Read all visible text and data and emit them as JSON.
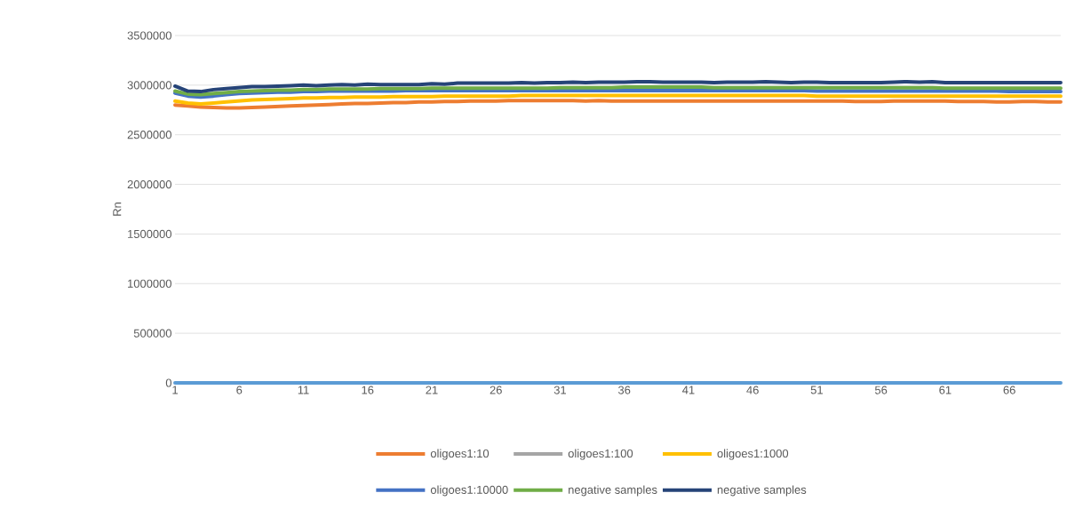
{
  "chart_data": {
    "type": "line",
    "ylabel": "Rn",
    "categories": [
      "1",
      null,
      null,
      null,
      null,
      "6",
      null,
      null,
      null,
      null,
      "11",
      null,
      null,
      null,
      null,
      "16",
      null,
      null,
      null,
      null,
      "21",
      null,
      null,
      null,
      null,
      "26",
      null,
      null,
      null,
      null,
      "31",
      null,
      null,
      null,
      null,
      "36",
      null,
      null,
      null,
      null,
      "41",
      null,
      null,
      null,
      null,
      "46",
      null,
      null,
      null,
      null,
      "51",
      null,
      null,
      null,
      null,
      "56",
      null,
      null,
      null,
      null,
      "61",
      null,
      null,
      null,
      null,
      "66",
      null,
      null,
      null,
      null
    ],
    "ylim": [
      0,
      3500000
    ],
    "yticks": [
      0,
      500000,
      1000000,
      1500000,
      2000000,
      2500000,
      3000000,
      3500000
    ],
    "grid": "y",
    "legend": "bottom",
    "marker": "none",
    "line_style": "solid",
    "series": [
      {
        "color": "#5b9bd5",
        "values": [
          0,
          0,
          0,
          0,
          0,
          0,
          0,
          0,
          0,
          0,
          0,
          0,
          0,
          0,
          0,
          0,
          0,
          0,
          0,
          0,
          0,
          0,
          0,
          0,
          0,
          0,
          0,
          0,
          0,
          0,
          0,
          0,
          0,
          0,
          0,
          0,
          0,
          0,
          0,
          0,
          0,
          0,
          0,
          0,
          0,
          0,
          0,
          0,
          0,
          0,
          0,
          0,
          0,
          0,
          0,
          0,
          0,
          0,
          0,
          0,
          0,
          0,
          0,
          0,
          0,
          0,
          0,
          0,
          0,
          0
        ]
      },
      {
        "name": "oligoes1:10",
        "color": "#ed7d31",
        "values": [
          2800000,
          2790000,
          2780000,
          2775000,
          2770000,
          2770000,
          2775000,
          2780000,
          2785000,
          2790000,
          2795000,
          2800000,
          2805000,
          2810000,
          2815000,
          2815000,
          2820000,
          2825000,
          2825000,
          2830000,
          2830000,
          2835000,
          2835000,
          2840000,
          2840000,
          2840000,
          2845000,
          2845000,
          2845000,
          2845000,
          2845000,
          2845000,
          2840000,
          2845000,
          2840000,
          2840000,
          2840000,
          2840000,
          2840000,
          2840000,
          2840000,
          2840000,
          2840000,
          2840000,
          2840000,
          2840000,
          2840000,
          2840000,
          2840000,
          2840000,
          2840000,
          2840000,
          2840000,
          2835000,
          2835000,
          2835000,
          2840000,
          2840000,
          2840000,
          2840000,
          2840000,
          2835000,
          2835000,
          2835000,
          2830000,
          2830000,
          2835000,
          2835000,
          2830000,
          2830000
        ]
      },
      {
        "name": "oligoes1:100",
        "color": "#a5a5a5",
        "values": [
          null,
          null,
          null,
          null,
          null,
          null,
          null,
          null,
          null,
          null,
          null,
          null,
          null,
          null,
          null,
          null,
          null,
          null,
          null,
          null,
          null,
          null,
          null,
          null,
          null,
          null,
          null,
          null,
          null,
          null,
          null,
          null,
          null,
          null,
          null,
          null,
          null,
          null,
          null,
          null,
          null,
          null,
          null,
          null,
          null,
          null,
          null,
          null,
          null,
          null,
          null,
          null,
          null,
          null,
          null,
          null,
          null,
          null,
          null,
          null,
          null,
          null,
          null,
          null,
          null,
          null,
          null,
          null,
          null,
          null
        ]
      },
      {
        "name": "oligoes1:1000",
        "color": "#ffc000",
        "values": [
          2840000,
          2820000,
          2810000,
          2820000,
          2830000,
          2840000,
          2850000,
          2855000,
          2860000,
          2865000,
          2870000,
          2870000,
          2875000,
          2875000,
          2880000,
          2880000,
          2880000,
          2885000,
          2885000,
          2885000,
          2885000,
          2890000,
          2890000,
          2890000,
          2890000,
          2890000,
          2890000,
          2895000,
          2895000,
          2895000,
          2895000,
          2895000,
          2895000,
          2895000,
          2895000,
          2895000,
          2895000,
          2895000,
          2895000,
          2895000,
          2895000,
          2895000,
          2895000,
          2895000,
          2895000,
          2895000,
          2895000,
          2895000,
          2895000,
          2895000,
          2890000,
          2890000,
          2890000,
          2890000,
          2890000,
          2890000,
          2890000,
          2890000,
          2890000,
          2890000,
          2890000,
          2890000,
          2890000,
          2890000,
          2890000,
          2890000,
          2890000,
          2890000,
          2890000,
          2890000
        ]
      },
      {
        "name": "oligoes1:10000",
        "color": "#4472c4",
        "values": [
          2920000,
          2890000,
          2880000,
          2890000,
          2905000,
          2915000,
          2920000,
          2925000,
          2930000,
          2930000,
          2935000,
          2935000,
          2940000,
          2940000,
          2940000,
          2940000,
          2940000,
          2940000,
          2945000,
          2945000,
          2945000,
          2945000,
          2945000,
          2945000,
          2945000,
          2945000,
          2945000,
          2945000,
          2945000,
          2945000,
          2945000,
          2945000,
          2945000,
          2945000,
          2945000,
          2945000,
          2945000,
          2945000,
          2945000,
          2945000,
          2945000,
          2945000,
          2945000,
          2945000,
          2945000,
          2945000,
          2945000,
          2945000,
          2945000,
          2945000,
          2940000,
          2940000,
          2940000,
          2940000,
          2940000,
          2940000,
          2940000,
          2940000,
          2940000,
          2940000,
          2940000,
          2940000,
          2940000,
          2940000,
          2940000,
          2935000,
          2935000,
          2935000,
          2935000,
          2935000
        ]
      },
      {
        "name": "negative samples",
        "color": "#70ad47",
        "values": [
          2940000,
          2910000,
          2905000,
          2915000,
          2925000,
          2935000,
          2940000,
          2945000,
          2950000,
          2950000,
          2955000,
          2955000,
          2960000,
          2960000,
          2960000,
          2960000,
          2965000,
          2965000,
          2965000,
          2965000,
          2970000,
          2970000,
          2970000,
          2970000,
          2970000,
          2970000,
          2970000,
          2970000,
          2970000,
          2970000,
          2975000,
          2975000,
          2975000,
          2975000,
          2975000,
          2980000,
          2980000,
          2980000,
          2980000,
          2980000,
          2980000,
          2980000,
          2975000,
          2975000,
          2975000,
          2975000,
          2975000,
          2975000,
          2975000,
          2975000,
          2975000,
          2975000,
          2975000,
          2975000,
          2975000,
          2975000,
          2975000,
          2975000,
          2975000,
          2975000,
          2970000,
          2970000,
          2970000,
          2970000,
          2970000,
          2970000,
          2970000,
          2970000,
          2970000,
          2970000
        ]
      },
      {
        "name": "negative samples",
        "color": "#264478",
        "values": [
          2990000,
          2940000,
          2935000,
          2955000,
          2965000,
          2975000,
          2985000,
          2985000,
          2990000,
          2995000,
          3000000,
          2995000,
          3000000,
          3005000,
          3000000,
          3010000,
          3005000,
          3005000,
          3005000,
          3005000,
          3015000,
          3010000,
          3020000,
          3020000,
          3020000,
          3020000,
          3020000,
          3025000,
          3020000,
          3025000,
          3025000,
          3030000,
          3025000,
          3030000,
          3030000,
          3030000,
          3035000,
          3035000,
          3030000,
          3030000,
          3030000,
          3030000,
          3025000,
          3030000,
          3030000,
          3030000,
          3035000,
          3030000,
          3025000,
          3030000,
          3030000,
          3025000,
          3025000,
          3025000,
          3025000,
          3025000,
          3030000,
          3035000,
          3030000,
          3035000,
          3025000,
          3025000,
          3025000,
          3025000,
          3025000,
          3025000,
          3025000,
          3025000,
          3025000,
          3025000
        ]
      }
    ]
  }
}
